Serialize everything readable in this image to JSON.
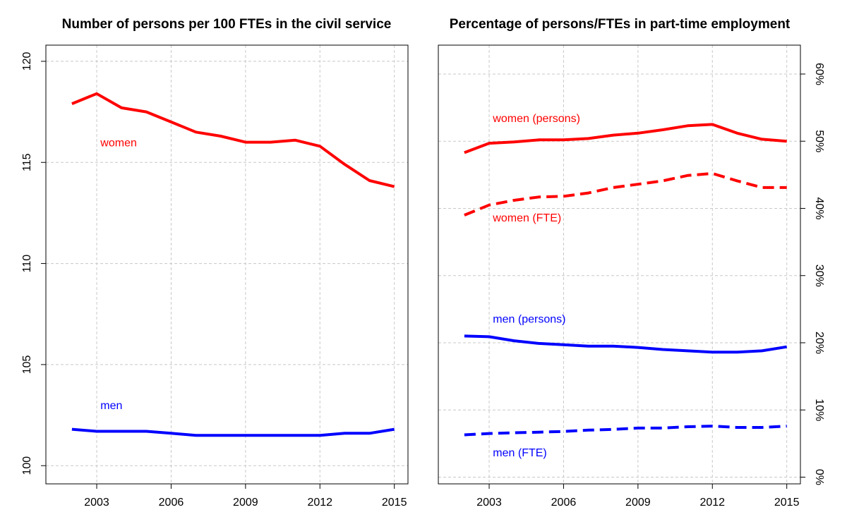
{
  "chart_data": [
    {
      "type": "line",
      "title": "Number of persons per 100 FTEs in the civil service",
      "xlabel": "",
      "ylabel": "",
      "x": [
        2002,
        2003,
        2004,
        2005,
        2006,
        2007,
        2008,
        2009,
        2010,
        2011,
        2012,
        2013,
        2014,
        2015
      ],
      "xticks": [
        2003,
        2006,
        2009,
        2012,
        2015
      ],
      "xlim": [
        2000.95,
        2015.55
      ],
      "ylim": [
        99.1,
        120.8
      ],
      "yticks": [
        100,
        105,
        110,
        115,
        120
      ],
      "y_axis_side": "left",
      "grid": true,
      "series": [
        {
          "name": "women",
          "color": "#ff0000",
          "style": "solid",
          "values": [
            117.9,
            118.4,
            117.7,
            117.5,
            117.0,
            116.5,
            116.3,
            116.0,
            116.0,
            116.1,
            115.8,
            114.9,
            114.1,
            113.8
          ]
        },
        {
          "name": "men",
          "color": "#0000ff",
          "style": "solid",
          "values": [
            101.8,
            101.7,
            101.7,
            101.7,
            101.6,
            101.5,
            101.5,
            101.5,
            101.5,
            101.5,
            101.5,
            101.6,
            101.6,
            101.8
          ]
        }
      ],
      "labels": [
        {
          "text": "women",
          "color": "#ff0000",
          "x": 2003.15,
          "y": 116.0
        },
        {
          "text": "men",
          "color": "#0000ff",
          "x": 2003.15,
          "y": 103.0
        }
      ]
    },
    {
      "type": "line",
      "title": "Percentage of persons/FTEs in part-time employment",
      "xlabel": "",
      "ylabel": "",
      "x": [
        2002,
        2003,
        2004,
        2005,
        2006,
        2007,
        2008,
        2009,
        2010,
        2011,
        2012,
        2013,
        2014,
        2015
      ],
      "xticks": [
        2003,
        2006,
        2009,
        2012,
        2015
      ],
      "xlim": [
        2000.95,
        2015.55
      ],
      "ylim": [
        -1.0,
        64.3
      ],
      "yticks": [
        0,
        10,
        20,
        30,
        40,
        50,
        60
      ],
      "yticklabels": [
        "0%",
        "10%",
        "20%",
        "30%",
        "40%",
        "50%",
        "60%"
      ],
      "y_axis_side": "right",
      "grid": true,
      "series": [
        {
          "name": "women (persons)",
          "color": "#ff0000",
          "style": "solid",
          "values": [
            48.3,
            49.7,
            49.9,
            50.2,
            50.2,
            50.4,
            50.9,
            51.2,
            51.7,
            52.3,
            52.5,
            51.2,
            50.3,
            50.0
          ]
        },
        {
          "name": "women (FTE)",
          "color": "#ff0000",
          "style": "dashed",
          "values": [
            39.0,
            40.5,
            41.2,
            41.7,
            41.8,
            42.3,
            43.1,
            43.6,
            44.1,
            44.9,
            45.2,
            44.1,
            43.1,
            43.1
          ]
        },
        {
          "name": "men (persons)",
          "color": "#0000ff",
          "style": "solid",
          "values": [
            21.0,
            20.9,
            20.3,
            19.9,
            19.7,
            19.5,
            19.5,
            19.3,
            19.0,
            18.8,
            18.6,
            18.6,
            18.8,
            19.4
          ]
        },
        {
          "name": "men (FTE)",
          "color": "#0000ff",
          "style": "dashed",
          "values": [
            6.3,
            6.5,
            6.6,
            6.7,
            6.8,
            7.0,
            7.1,
            7.3,
            7.3,
            7.5,
            7.6,
            7.4,
            7.4,
            7.6
          ]
        }
      ],
      "labels": [
        {
          "text": "women (persons)",
          "color": "#ff0000",
          "x": 2003.15,
          "y": 53.5
        },
        {
          "text": "women (FTE)",
          "color": "#ff0000",
          "x": 2003.15,
          "y": 38.7
        },
        {
          "text": "men (persons)",
          "color": "#0000ff",
          "x": 2003.15,
          "y": 23.6
        },
        {
          "text": "men (FTE)",
          "color": "#0000ff",
          "x": 2003.15,
          "y": 3.7
        }
      ]
    }
  ]
}
